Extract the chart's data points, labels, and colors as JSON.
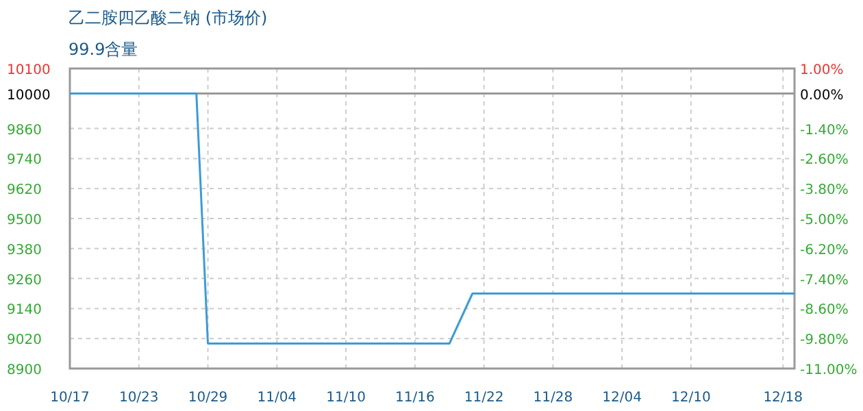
{
  "chart_data": {
    "type": "line",
    "title": "乙二胺四乙酸二钠 (市场价)",
    "subtitle": "99.9含量",
    "x": [
      "--10-17",
      "--10-28",
      "--10-29",
      "--11-19",
      "--11-21",
      "--12-19"
    ],
    "series": [
      {
        "color": "#3c9bd6",
        "values": [
          10000,
          10000,
          9000,
          9000,
          9200,
          9200
        ]
      }
    ],
    "xlim": [
      "--10-17",
      "--12-19"
    ],
    "xticks": [
      {
        "value": "--10-17",
        "label": "10/17"
      },
      {
        "value": "--10-23",
        "label": "10/23"
      },
      {
        "value": "--10-29",
        "label": "10/29"
      },
      {
        "value": "--11-04",
        "label": "11/04"
      },
      {
        "value": "--11-10",
        "label": "11/10"
      },
      {
        "value": "--11-16",
        "label": "11/16"
      },
      {
        "value": "--11-22",
        "label": "11/22"
      },
      {
        "value": "--11-28",
        "label": "11/28"
      },
      {
        "value": "--12-04",
        "label": "12/04"
      },
      {
        "value": "--12-10",
        "label": "12/10"
      },
      {
        "value": "--12-18",
        "label": "12/18"
      }
    ],
    "ylim": [
      8900,
      10100
    ],
    "yticks": [
      8900,
      9020,
      9140,
      9260,
      9380,
      9500,
      9620,
      9740,
      9860,
      10000,
      10100
    ],
    "y2lim": [
      -11,
      1
    ],
    "y2ticks": [
      {
        "value": -11,
        "label": "-11.00%"
      },
      {
        "value": -9.8,
        "label": "-9.80%"
      },
      {
        "value": -8.6,
        "label": "-8.60%"
      },
      {
        "value": -7.4,
        "label": "-7.40%"
      },
      {
        "value": -6.2,
        "label": "-6.20%"
      },
      {
        "value": -5,
        "label": "-5.00%"
      },
      {
        "value": -3.8,
        "label": "-3.80%"
      },
      {
        "value": -2.6,
        "label": "-2.60%"
      },
      {
        "value": -1.4,
        "label": "-1.40%"
      },
      {
        "value": 0,
        "label": "0.00%"
      },
      {
        "value": 1,
        "label": "1.00%"
      }
    ],
    "ref_lines": [
      {
        "axis": "y",
        "value": 10000,
        "color": "#999999"
      }
    ],
    "grid": true,
    "marker": "none",
    "line_style": "solid"
  }
}
